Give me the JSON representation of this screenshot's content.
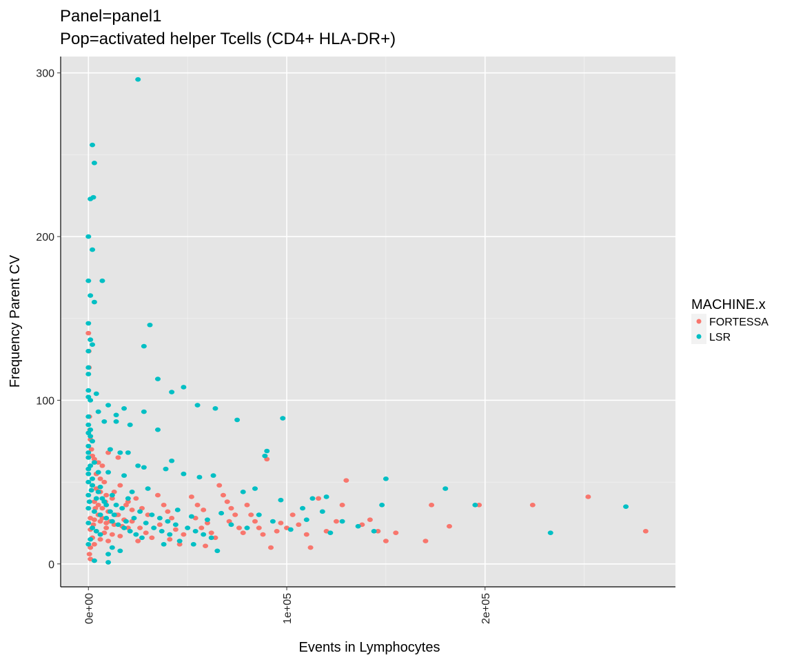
{
  "chart_data": {
    "type": "scatter",
    "title": "Panel=panel1",
    "subtitle": "Pop=activated helper Tcells (CD4+ HLA-DR+)",
    "xlabel": "Events in Lymphocytes",
    "ylabel": "Frequency Parent CV",
    "xlim": [
      -14000,
      296000
    ],
    "ylim": [
      -14,
      310
    ],
    "x_ticks": [
      0,
      100000,
      200000
    ],
    "x_tick_labels": [
      "0e+00",
      "1e+05",
      "2e+05"
    ],
    "y_ticks": [
      0,
      100,
      200,
      300
    ],
    "y_tick_labels": [
      "0",
      "100",
      "200",
      "300"
    ],
    "grid": true,
    "legend": {
      "title": "MACHINE.x",
      "placement": "right"
    },
    "series": [
      {
        "name": "FORTESSA",
        "color": "#F8766D",
        "points": [
          [
            0,
            141
          ],
          [
            200,
            130
          ],
          [
            300,
            120
          ],
          [
            500,
            90
          ],
          [
            800,
            82
          ],
          [
            1000,
            76
          ],
          [
            1500,
            70
          ],
          [
            2000,
            66
          ],
          [
            3000,
            64
          ],
          [
            5000,
            62
          ],
          [
            7000,
            60
          ],
          [
            10000,
            68
          ],
          [
            15000,
            65
          ],
          [
            4000,
            55
          ],
          [
            6000,
            52
          ],
          [
            8000,
            50
          ],
          [
            2000,
            48
          ],
          [
            4000,
            46
          ],
          [
            6000,
            44
          ],
          [
            9000,
            42
          ],
          [
            12000,
            40
          ],
          [
            3000,
            38
          ],
          [
            5000,
            36
          ],
          [
            7000,
            34
          ],
          [
            10000,
            32
          ],
          [
            14000,
            30
          ],
          [
            1000,
            28
          ],
          [
            3000,
            27
          ],
          [
            6000,
            26
          ],
          [
            9000,
            25
          ],
          [
            13000,
            24
          ],
          [
            17000,
            23
          ],
          [
            20000,
            22
          ],
          [
            1000,
            21
          ],
          [
            4000,
            20
          ],
          [
            8000,
            19
          ],
          [
            12000,
            18
          ],
          [
            16000,
            17
          ],
          [
            2000,
            16
          ],
          [
            6000,
            15
          ],
          [
            10000,
            14
          ],
          [
            1000,
            10
          ],
          [
            500,
            6
          ],
          [
            1000,
            3
          ],
          [
            3000,
            12
          ],
          [
            24000,
            40
          ],
          [
            27000,
            34
          ],
          [
            30000,
            30
          ],
          [
            22000,
            26
          ],
          [
            26000,
            22
          ],
          [
            29000,
            19
          ],
          [
            32000,
            16
          ],
          [
            25000,
            14
          ],
          [
            35000,
            42
          ],
          [
            38000,
            36
          ],
          [
            40000,
            32
          ],
          [
            42000,
            28
          ],
          [
            36000,
            24
          ],
          [
            44000,
            21
          ],
          [
            48000,
            18
          ],
          [
            41000,
            15
          ],
          [
            46000,
            12
          ],
          [
            52000,
            41
          ],
          [
            55000,
            36
          ],
          [
            58000,
            33
          ],
          [
            54000,
            28
          ],
          [
            60000,
            25
          ],
          [
            57000,
            22
          ],
          [
            62000,
            19
          ],
          [
            64000,
            16
          ],
          [
            59000,
            11
          ],
          [
            66000,
            48
          ],
          [
            68000,
            42
          ],
          [
            70000,
            38
          ],
          [
            72000,
            34
          ],
          [
            74000,
            30
          ],
          [
            71000,
            26
          ],
          [
            76000,
            22
          ],
          [
            78000,
            19
          ],
          [
            80000,
            36
          ],
          [
            82000,
            30
          ],
          [
            84000,
            26
          ],
          [
            86000,
            22
          ],
          [
            88000,
            18
          ],
          [
            90000,
            64
          ],
          [
            92000,
            10
          ],
          [
            95000,
            20
          ],
          [
            97000,
            25
          ],
          [
            100000,
            22
          ],
          [
            103000,
            30
          ],
          [
            106000,
            24
          ],
          [
            110000,
            18
          ],
          [
            112000,
            10
          ],
          [
            116000,
            40
          ],
          [
            120000,
            20
          ],
          [
            125000,
            26
          ],
          [
            130000,
            51
          ],
          [
            128000,
            36
          ],
          [
            138000,
            24
          ],
          [
            142000,
            27
          ],
          [
            146000,
            20
          ],
          [
            150000,
            14
          ],
          [
            155000,
            19
          ],
          [
            170000,
            14
          ],
          [
            173000,
            36
          ],
          [
            182000,
            23
          ],
          [
            197000,
            36
          ],
          [
            224000,
            36
          ],
          [
            252000,
            41
          ],
          [
            281000,
            20
          ],
          [
            15000,
            30
          ],
          [
            18000,
            27
          ],
          [
            20000,
            38
          ],
          [
            22000,
            33
          ],
          [
            5000,
            30
          ],
          [
            7000,
            28
          ],
          [
            9000,
            22
          ],
          [
            11000,
            26
          ],
          [
            2500,
            24
          ],
          [
            3500,
            34
          ],
          [
            8500,
            38
          ],
          [
            13000,
            44
          ],
          [
            16000,
            48
          ],
          [
            19000,
            36
          ]
        ]
      },
      {
        "name": "LSR",
        "color": "#00BFC4",
        "points": [
          [
            25000,
            296
          ],
          [
            2000,
            256
          ],
          [
            3000,
            245
          ],
          [
            1000,
            223
          ],
          [
            2500,
            224
          ],
          [
            0,
            200
          ],
          [
            2000,
            192
          ],
          [
            0,
            173
          ],
          [
            7000,
            173
          ],
          [
            1000,
            164
          ],
          [
            3000,
            160
          ],
          [
            0,
            147
          ],
          [
            31000,
            146
          ],
          [
            1000,
            137
          ],
          [
            2000,
            134
          ],
          [
            28000,
            133
          ],
          [
            0,
            130
          ],
          [
            0,
            120
          ],
          [
            0,
            116
          ],
          [
            35000,
            113
          ],
          [
            0,
            106
          ],
          [
            48000,
            108
          ],
          [
            42000,
            105
          ],
          [
            4000,
            104
          ],
          [
            0,
            102
          ],
          [
            1000,
            100
          ],
          [
            55000,
            97
          ],
          [
            10000,
            97
          ],
          [
            18000,
            95
          ],
          [
            28000,
            93
          ],
          [
            64000,
            95
          ],
          [
            5000,
            93
          ],
          [
            14000,
            91
          ],
          [
            0,
            90
          ],
          [
            75000,
            88
          ],
          [
            98000,
            89
          ],
          [
            8000,
            87
          ],
          [
            14000,
            87
          ],
          [
            21000,
            85
          ],
          [
            35000,
            82
          ],
          [
            0,
            80
          ],
          [
            1000,
            78
          ],
          [
            2000,
            75
          ],
          [
            0,
            72
          ],
          [
            11000,
            70
          ],
          [
            16000,
            68
          ],
          [
            20000,
            68
          ],
          [
            90000,
            69
          ],
          [
            89000,
            66
          ],
          [
            0,
            65
          ],
          [
            42000,
            63
          ],
          [
            3000,
            62
          ],
          [
            25000,
            60
          ],
          [
            28000,
            59
          ],
          [
            0,
            58
          ],
          [
            39000,
            58
          ],
          [
            5000,
            56
          ],
          [
            10000,
            56
          ],
          [
            48000,
            55
          ],
          [
            18000,
            54
          ],
          [
            56000,
            53
          ],
          [
            63000,
            54
          ],
          [
            150000,
            52
          ],
          [
            0,
            50
          ],
          [
            2000,
            48
          ],
          [
            6000,
            47
          ],
          [
            30000,
            46
          ],
          [
            180000,
            46
          ],
          [
            84000,
            46
          ],
          [
            78000,
            44
          ],
          [
            22000,
            44
          ],
          [
            12000,
            42
          ],
          [
            0,
            42
          ],
          [
            4000,
            40
          ],
          [
            8000,
            38
          ],
          [
            14000,
            36
          ],
          [
            20000,
            40
          ],
          [
            120000,
            41
          ],
          [
            97000,
            39
          ],
          [
            113000,
            40
          ],
          [
            108000,
            34
          ],
          [
            118000,
            32
          ],
          [
            148000,
            36
          ],
          [
            195000,
            36
          ],
          [
            271000,
            35
          ],
          [
            0,
            34
          ],
          [
            3000,
            32
          ],
          [
            6000,
            30
          ],
          [
            9000,
            28
          ],
          [
            12000,
            26
          ],
          [
            15000,
            24
          ],
          [
            18000,
            22
          ],
          [
            21000,
            20
          ],
          [
            24000,
            18
          ],
          [
            27000,
            16
          ],
          [
            0,
            25
          ],
          [
            2000,
            22
          ],
          [
            4000,
            20
          ],
          [
            6000,
            18
          ],
          [
            32000,
            30
          ],
          [
            36000,
            28
          ],
          [
            40000,
            26
          ],
          [
            44000,
            24
          ],
          [
            50000,
            22
          ],
          [
            54000,
            20
          ],
          [
            58000,
            18
          ],
          [
            62000,
            16
          ],
          [
            65000,
            8
          ],
          [
            38000,
            12
          ],
          [
            12000,
            10
          ],
          [
            10000,
            6
          ],
          [
            16000,
            8
          ],
          [
            10000,
            1
          ],
          [
            3000,
            2
          ],
          [
            128000,
            26
          ],
          [
            136000,
            23
          ],
          [
            144000,
            20
          ],
          [
            233000,
            19
          ],
          [
            0,
            12
          ],
          [
            1000,
            15
          ],
          [
            45000,
            33
          ],
          [
            52000,
            29
          ],
          [
            60000,
            27
          ],
          [
            67000,
            31
          ],
          [
            72000,
            24
          ],
          [
            80000,
            22
          ],
          [
            86000,
            30
          ],
          [
            93000,
            26
          ],
          [
            102000,
            21
          ],
          [
            122000,
            19
          ],
          [
            110000,
            27
          ],
          [
            0,
            55
          ],
          [
            1000,
            60
          ],
          [
            2000,
            52
          ],
          [
            5000,
            44
          ],
          [
            7000,
            40
          ],
          [
            9000,
            36
          ],
          [
            11000,
            32
          ],
          [
            13000,
            30
          ],
          [
            17000,
            34
          ],
          [
            19000,
            26
          ],
          [
            23000,
            28
          ],
          [
            26000,
            32
          ],
          [
            29000,
            25
          ],
          [
            33000,
            22
          ],
          [
            37000,
            20
          ],
          [
            41000,
            18
          ],
          [
            46000,
            14
          ],
          [
            53000,
            12
          ],
          [
            0,
            85
          ],
          [
            1000,
            82
          ],
          [
            0,
            68
          ],
          [
            1500,
            45
          ],
          [
            500,
            38
          ]
        ]
      }
    ]
  }
}
